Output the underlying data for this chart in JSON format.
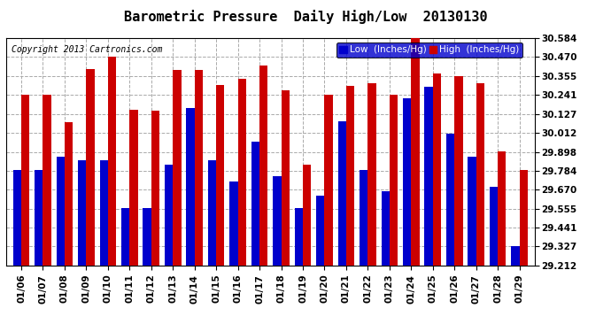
{
  "title": "Barometric Pressure  Daily High/Low  20130130",
  "copyright": "Copyright 2013 Cartronics.com",
  "ytick_values": [
    29.212,
    29.327,
    29.441,
    29.555,
    29.67,
    29.784,
    29.898,
    30.012,
    30.127,
    30.241,
    30.355,
    30.47,
    30.584
  ],
  "dates": [
    "01/06",
    "01/07",
    "01/08",
    "01/09",
    "01/10",
    "01/11",
    "01/12",
    "01/13",
    "01/14",
    "01/15",
    "01/16",
    "01/17",
    "01/18",
    "01/19",
    "01/20",
    "01/21",
    "01/22",
    "01/23",
    "01/24",
    "01/25",
    "01/26",
    "01/27",
    "01/28",
    "01/29"
  ],
  "low_values": [
    29.79,
    29.79,
    29.87,
    29.845,
    29.845,
    29.56,
    29.56,
    29.82,
    30.165,
    29.85,
    29.72,
    29.96,
    29.75,
    29.56,
    29.635,
    30.08,
    29.79,
    29.66,
    30.22,
    30.29,
    30.01,
    29.87,
    29.69,
    29.33
  ],
  "high_values": [
    30.241,
    30.241,
    30.075,
    30.4,
    30.47,
    30.15,
    30.145,
    30.395,
    30.39,
    30.3,
    30.34,
    30.42,
    30.27,
    29.82,
    30.241,
    30.295,
    30.31,
    30.241,
    30.59,
    30.37,
    30.355,
    30.31,
    29.9,
    29.79
  ],
  "bar_width": 0.38,
  "bg_color": "#ffffff",
  "low_color": "#0000cc",
  "high_color": "#cc0000",
  "grid_color": "#aaaaaa",
  "ylim_min": 29.212,
  "ylim_max": 30.584,
  "legend_low_label": "Low  (Inches/Hg)",
  "legend_high_label": "High  (Inches/Hg)",
  "title_fontsize": 11,
  "tick_fontsize": 7.5,
  "copyright_fontsize": 7,
  "legend_fontsize": 7.5
}
